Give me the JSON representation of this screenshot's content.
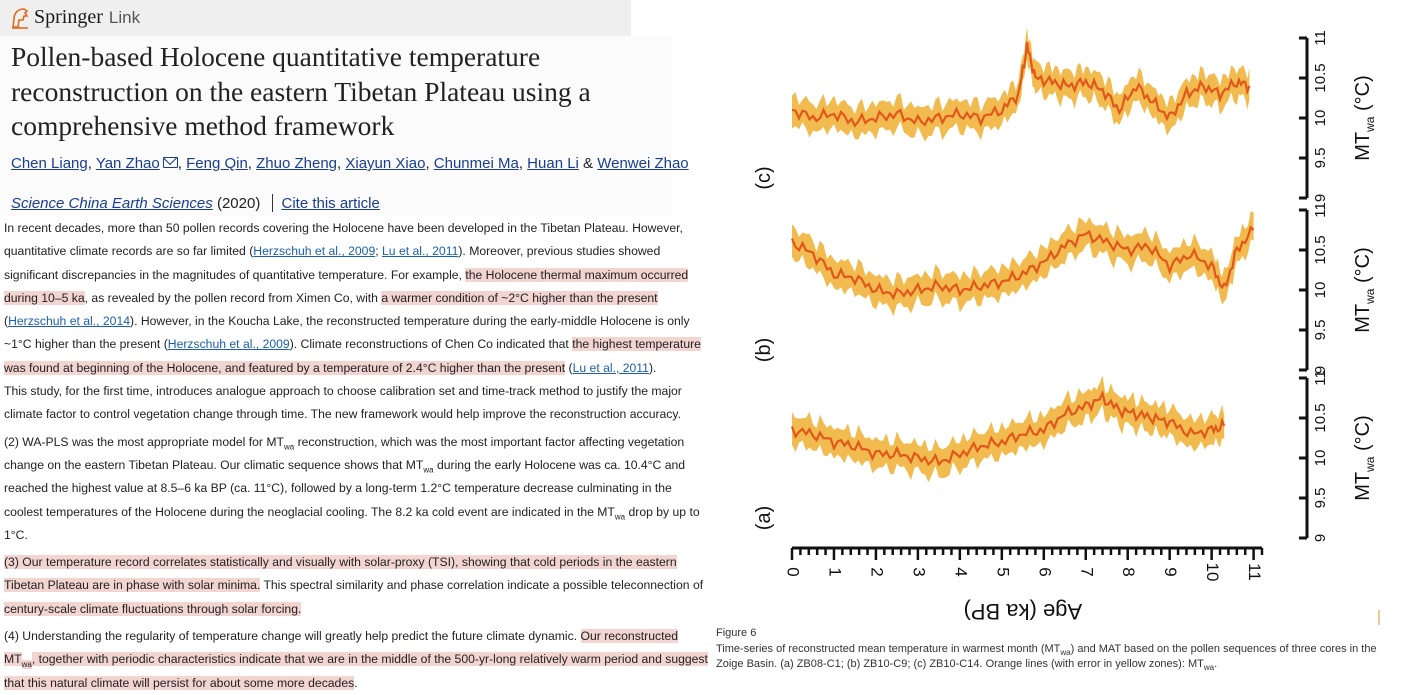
{
  "header": {
    "brand_main": "Springer",
    "brand_sub": "Link"
  },
  "article": {
    "title": "Pollen-based Holocene quantitative temperature reconstruction on the eastern Tibetan Plateau using a comprehensive method framework",
    "authors": [
      "Chen Liang",
      "Yan Zhao",
      "Feng Qin",
      "Zhuo Zheng",
      "Xiayun Xiao",
      "Chunmei Ma",
      "Huan Li",
      "Wenwei Zhao"
    ],
    "author_sep": ", ",
    "author_amp": " & ",
    "journal": "Science China Earth Sciences",
    "year": "(2020)",
    "cite_label": "Cite this article"
  },
  "body": {
    "p1_a": "In recent decades, more than 50 pollen records covering the Holocene have been developed in the Tibetan Plateau. However, quantitative climate records are so far limited (",
    "ref_herz2009": "Herzschuh et al., 2009",
    "semi": "; ",
    "ref_lu2011": "Lu et al., 2011",
    "p1_b": "). Moreover, previous studies showed significant discrepancies in the magnitudes of quantitative temperature. For example, ",
    "p1_hl1": "the Holocene thermal maximum occurred during 10–5 ka",
    "p1_c": ", as revealed by the pollen record from Ximen Co, with ",
    "p1_hl2": "a warmer condition of ~2°C higher than the present",
    "p1_d": " (",
    "ref_herz2014": "Herzschuh et al., 2014",
    "p1_e": "). However, in the Koucha Lake, the reconstructed temperature during the early-middle Holocene is only ~1°C higher than the present (",
    "ref_herz2009b": "Herzschuh et al., 2009",
    "p1_f": "). Climate reconstructions of Chen Co indicated that ",
    "p1_hl3": "the highest temperature was found at beginning of the Holocene, and featured by a temperature of 2.4°C higher than the present",
    "p1_g": " (",
    "ref_lu2011b": "Lu et al., 2011",
    "p1_h": ").",
    "p2": "This study, for the first time, introduces analogue approach to choose calibration set and time-track method to justify the major climate factor to control vegetation change through time. The new framework would help improve the reconstruction accuracy.",
    "p3_a": "(2) WA-PLS was the most appropriate model for MT",
    "sub_wa": "wa",
    "p3_b": " reconstruction, which was the most important factor affecting vegetation change on the eastern Tibetan Plateau. Our climatic sequence shows that MT",
    "p3_c": " during the early Holocene was ca. 10.4°C and reached the highest value at 8.5–6 ka BP (ca. 11°C), followed by a long-term 1.2°C temperature decrease culminating in the coolest temperatures of the Holocene during the neoglacial cooling. The 8.2 ka cold event are indicated in the MT",
    "p3_d": " drop by up to 1°C.",
    "p4_a": "(3) ",
    "p4_hl": "Our temperature record correlates statistically and visually with solar-proxy (TSI), showing that cold periods in the eastern Tibetan Plateau are in phase with solar minima.",
    "p4_b": " This spectral similarity and phase correlation indicate a possible teleconnection of ",
    "p4_hl2": "century-scale climate fluctuations through solar forcing.",
    "p5_a": "(4) Understanding the regularity of temperature change will greatly help predict the future climate dynamic. ",
    "p5_hl": "Our reconstructed MT",
    "p5_hl2": ", together with periodic characteristics indicate that we are in the middle of the 500-yr-long relatively warm period and suggest that this natural climate will persist for about some more decades",
    "p5_end": "."
  },
  "figure": {
    "label": "Figure 6",
    "caption_a": "Time-series of reconstructed mean temperature in warmest month (MT",
    "caption_sub": "wa",
    "caption_b": ") and MAT based on the pollen sequences of three cores in the Zoige Basin. (a) ZB08-C1; (b) ZB10-C9; (c) ZB10-C14. Orange lines (with error in yellow zones): MT",
    "caption_c": "."
  },
  "chart_data": {
    "type": "line",
    "orientation": "rotated 90° (age axis runs along the bottom, temperature axes on the right)",
    "x_label": "Age (ka BP)",
    "x_ticks": [
      "0",
      "1",
      "2",
      "3",
      "4",
      "5",
      "6",
      "7",
      "8",
      "9",
      "10",
      "11"
    ],
    "y_label": "MT",
    "y_label_sub": "wa",
    "y_label_unit": " (°C)",
    "y_ticks": [
      "9",
      "9.5",
      "10",
      "10.5",
      "11"
    ],
    "xlim": [
      0,
      11.2
    ],
    "ylim": [
      9,
      11
    ],
    "colors": {
      "line": "#e2571b",
      "band": "#f0b43c"
    },
    "panels": [
      {
        "label": "(c)",
        "series_points": [
          [
            0,
            10.1
          ],
          [
            0.5,
            10.0
          ],
          [
            1,
            10.05
          ],
          [
            1.5,
            9.95
          ],
          [
            2,
            10.0
          ],
          [
            2.5,
            10.05
          ],
          [
            3,
            9.95
          ],
          [
            3.5,
            10.0
          ],
          [
            4,
            10.05
          ],
          [
            4.5,
            10.0
          ],
          [
            5,
            10.1
          ],
          [
            5.4,
            10.3
          ],
          [
            5.6,
            10.9
          ],
          [
            5.8,
            10.5
          ],
          [
            6.2,
            10.45
          ],
          [
            6.6,
            10.4
          ],
          [
            7,
            10.45
          ],
          [
            7.4,
            10.35
          ],
          [
            7.8,
            10.1
          ],
          [
            8.2,
            10.4
          ],
          [
            8.6,
            10.2
          ],
          [
            9,
            10.0
          ],
          [
            9.4,
            10.3
          ],
          [
            9.8,
            10.4
          ],
          [
            10.2,
            10.3
          ],
          [
            10.6,
            10.45
          ],
          [
            10.9,
            10.4
          ]
        ]
      },
      {
        "label": "(b)",
        "series_points": [
          [
            0,
            10.6
          ],
          [
            0.5,
            10.45
          ],
          [
            1,
            10.2
          ],
          [
            1.5,
            10.15
          ],
          [
            2,
            10.0
          ],
          [
            2.5,
            9.95
          ],
          [
            3,
            10.0
          ],
          [
            3.5,
            10.05
          ],
          [
            4,
            10.0
          ],
          [
            4.5,
            10.05
          ],
          [
            5,
            10.1
          ],
          [
            5.5,
            10.2
          ],
          [
            6,
            10.35
          ],
          [
            6.5,
            10.55
          ],
          [
            7,
            10.7
          ],
          [
            7.5,
            10.6
          ],
          [
            8,
            10.5
          ],
          [
            8.5,
            10.55
          ],
          [
            9,
            10.3
          ],
          [
            9.5,
            10.45
          ],
          [
            10,
            10.3
          ],
          [
            10.3,
            10.0
          ],
          [
            10.6,
            10.5
          ],
          [
            11,
            10.75
          ]
        ]
      },
      {
        "label": "(a)",
        "series_points": [
          [
            0,
            10.35
          ],
          [
            0.5,
            10.3
          ],
          [
            1,
            10.2
          ],
          [
            1.5,
            10.15
          ],
          [
            2,
            10.05
          ],
          [
            2.5,
            10.05
          ],
          [
            3,
            10.0
          ],
          [
            3.5,
            9.95
          ],
          [
            4,
            10.05
          ],
          [
            4.5,
            10.15
          ],
          [
            5,
            10.2
          ],
          [
            5.5,
            10.3
          ],
          [
            6,
            10.35
          ],
          [
            6.5,
            10.55
          ],
          [
            7,
            10.65
          ],
          [
            7.4,
            10.75
          ],
          [
            7.8,
            10.6
          ],
          [
            8.2,
            10.55
          ],
          [
            8.6,
            10.5
          ],
          [
            9,
            10.45
          ],
          [
            9.5,
            10.3
          ],
          [
            10,
            10.35
          ],
          [
            10.3,
            10.4
          ]
        ]
      }
    ]
  }
}
